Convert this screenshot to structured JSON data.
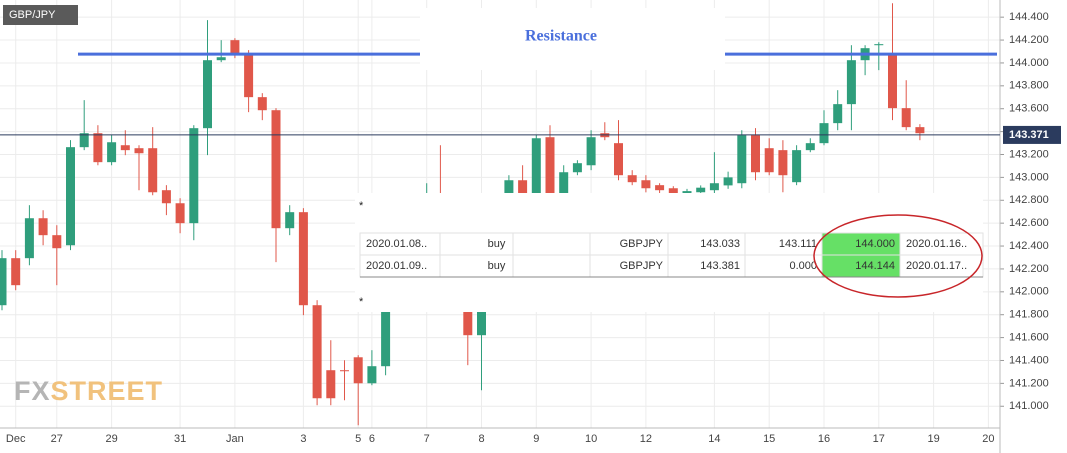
{
  "symbol": "GBP/JPY",
  "watermark": [
    "FX",
    "STREET"
  ],
  "chart_data": {
    "type": "candlestick",
    "categories": [
      null,
      "Dec",
      null,
      null,
      "27",
      null,
      null,
      null,
      "29",
      null,
      null,
      null,
      null,
      "31",
      null,
      null,
      null,
      "Jan",
      null,
      null,
      null,
      null,
      "3",
      null,
      null,
      null,
      "5",
      "6",
      null,
      null,
      null,
      "7",
      null,
      null,
      null,
      "8",
      null,
      null,
      null,
      "9",
      null,
      null,
      null,
      "10",
      null,
      null,
      null,
      "12",
      null,
      null,
      null,
      null,
      "14",
      null,
      null,
      null,
      "15",
      null,
      null,
      null,
      "16",
      null,
      null,
      null,
      "17",
      null,
      null,
      null,
      "19",
      null,
      null,
      null,
      "20"
    ],
    "open": [
      141.883,
      142.294,
      142.294,
      142.643,
      142.495,
      142.407,
      143.264,
      143.386,
      143.133,
      143.281,
      143.255,
      143.255,
      142.888,
      142.774,
      142.6,
      143.43,
      144.024,
      144.199,
      144.068,
      143.701,
      143.587,
      142.556,
      142.696,
      141.883,
      141.315,
      141.315,
      141.428,
      141.201,
      141.35,
      142.014,
      142.2,
      142.5,
      142.75,
      142.6,
      142.2,
      141.621,
      142.1,
      142.5,
      142.975,
      142.7,
      143.351,
      142.8,
      143.045,
      143.106,
      143.386,
      143.299,
      143.019,
      142.975,
      142.932,
      142.905,
      142.85,
      142.87,
      142.888,
      142.93,
      142.949,
      143.369,
      143.255,
      143.238,
      142.958,
      143.238,
      143.299,
      143.474,
      143.64,
      144.024,
      144.155,
      144.068,
      143.605,
      143.439,
      null,
      null,
      null,
      null,
      null
    ],
    "high": [
      142.364,
      142.364,
      142.757,
      142.713,
      142.582,
      143.325,
      143.675,
      143.456,
      143.369,
      143.412,
      143.281,
      143.439,
      142.932,
      142.818,
      143.456,
      144.374,
      144.199,
      144.216,
      144.112,
      143.736,
      143.605,
      142.757,
      142.731,
      141.927,
      141.577,
      141.402,
      141.446,
      141.49,
      142.101,
      142.3,
      142.6,
      142.949,
      143.281,
      142.7,
      142.3,
      142.15,
      142.6,
      143.019,
      143.106,
      143.369,
      143.456,
      143.106,
      143.15,
      143.412,
      143.482,
      143.5,
      143.063,
      143.019,
      142.949,
      142.923,
      142.9,
      142.93,
      143.22,
      143.05,
      143.412,
      143.43,
      143.342,
      143.325,
      143.281,
      143.342,
      143.587,
      143.762,
      144.155,
      144.155,
      144.181,
      144.522,
      143.849,
      143.465,
      null,
      null,
      null,
      null,
      null
    ],
    "low": [
      141.839,
      142.014,
      142.232,
      142.407,
      142.058,
      142.364,
      143.238,
      143.106,
      143.106,
      143.194,
      142.888,
      142.844,
      142.67,
      142.512,
      142.451,
      143.194,
      144.007,
      144.042,
      143.57,
      143.5,
      142.259,
      142.495,
      141.796,
      141.009,
      141.009,
      141.053,
      140.834,
      141.184,
      141.271,
      141.95,
      142.15,
      142.45,
      142.5,
      142.1,
      141.359,
      141.14,
      142.0,
      142.45,
      142.6,
      142.65,
      142.75,
      142.75,
      143.019,
      143.063,
      143.325,
      142.975,
      142.932,
      142.87,
      142.844,
      142.818,
      142.8,
      142.84,
      142.844,
      142.9,
      142.905,
      142.975,
      143.019,
      142.87,
      142.932,
      143.22,
      143.281,
      143.412,
      143.412,
      143.893,
      143.937,
      143.5,
      143.412,
      143.325,
      null,
      null,
      null,
      null,
      null
    ],
    "close": [
      142.294,
      142.058,
      142.643,
      142.495,
      142.381,
      143.264,
      143.386,
      143.133,
      143.307,
      143.238,
      143.211,
      142.87,
      142.774,
      142.6,
      143.43,
      144.024,
      144.05,
      144.068,
      143.701,
      143.587,
      142.556,
      142.696,
      141.883,
      141.07,
      141.07,
      141.306,
      141.201,
      141.35,
      142.014,
      142.2,
      142.5,
      142.75,
      142.6,
      142.2,
      141.621,
      142.1,
      142.5,
      142.975,
      142.7,
      143.342,
      142.8,
      143.045,
      143.124,
      143.351,
      143.351,
      143.019,
      142.958,
      142.905,
      142.888,
      142.862,
      142.88,
      142.91,
      142.949,
      143.0,
      143.369,
      143.045,
      143.045,
      143.019,
      143.238,
      143.299,
      143.474,
      143.64,
      144.024,
      144.129,
      144.164,
      143.605,
      143.439,
      143.386,
      null,
      null,
      null,
      null,
      null
    ],
    "up_color": "#2f9e7c",
    "down_color": "#e0574a",
    "ylim": [
      140.81,
      144.55
    ],
    "yticks": [
      {
        "value": 141.0,
        "label": "141.000"
      },
      {
        "value": 141.2,
        "label": "141.200"
      },
      {
        "value": 141.4,
        "label": "141.400"
      },
      {
        "value": 141.6,
        "label": "141.600"
      },
      {
        "value": 141.8,
        "label": "141.800"
      },
      {
        "value": 142.0,
        "label": "142.000"
      },
      {
        "value": 142.2,
        "label": "142.200"
      },
      {
        "value": 142.4,
        "label": "142.400"
      },
      {
        "value": 142.6,
        "label": "142.600"
      },
      {
        "value": 142.8,
        "label": "142.800"
      },
      {
        "value": 143.0,
        "label": "143.000"
      },
      {
        "value": 143.2,
        "label": "143.200"
      },
      {
        "value": 143.4,
        "label": "143.400"
      },
      {
        "value": 143.6,
        "label": "143.600"
      },
      {
        "value": 143.8,
        "label": "143.800"
      },
      {
        "value": 144.0,
        "label": "144.000"
      },
      {
        "value": 144.2,
        "label": "144.200"
      },
      {
        "value": 144.4,
        "label": "144.400"
      }
    ],
    "grid": true,
    "last_price": {
      "value": 143.371,
      "label": "143.371",
      "color": "#2b3b5e"
    },
    "resistance": {
      "value": 144.077,
      "label": "Resistance",
      "color": "#4a6fdc"
    }
  },
  "table": {
    "notes": [
      "*",
      "*"
    ],
    "rows": [
      [
        "2020.01.08..",
        "buy",
        "GBPJPY",
        "143.033",
        "143.111",
        "144.000",
        "2020.01.16.."
      ],
      [
        "2020.01.09..",
        "buy",
        "GBPJPY",
        "143.381",
        "0.000",
        "144.144",
        "2020.01.17.."
      ]
    ]
  }
}
